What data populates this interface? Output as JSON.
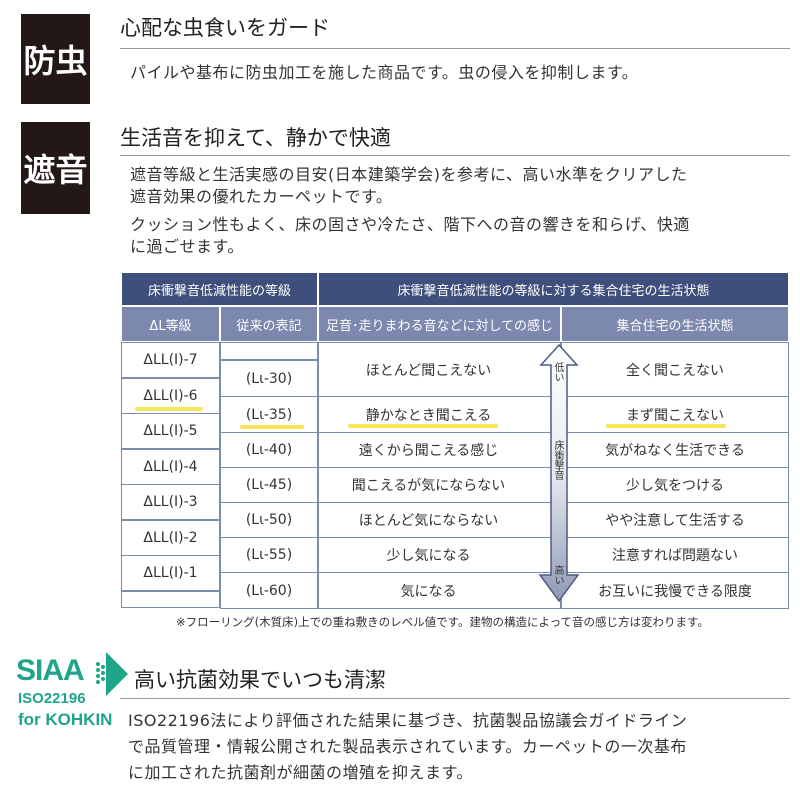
{
  "sections": [
    {
      "badge": "防虫",
      "title": "心配な虫食いをガード",
      "body": [
        "パイルや基布に防虫加工を施した商品です。虫の侵入を抑制します。"
      ]
    },
    {
      "badge": "遮音",
      "title": "生活音を抑えて、静かで快適",
      "body": [
        "遮音等級と生活実感の目安(日本建築学会)を参考に、高い水準をクリアした",
        "遮音効果の優れたカーペットです。",
        "クッション性もよく、床の固さや冷たさ、階下への音の響きを和らげ、快適",
        "に過ごせます。"
      ]
    },
    {
      "title": "高い抗菌効果でいつも清潔",
      "body": [
        "ISO22196法により評価された結果に基づき、抗菌製品協議会ガイドライン",
        "で品質管理・情報公開された製品表示されています。カーペットの一次基布",
        "に加工された抗菌剤が細菌の増殖を抑えます。"
      ]
    }
  ],
  "logo": {
    "name": "SIAA",
    "line2": "ISO22196",
    "line3": "for KOHKIN",
    "color": "#1fa58a"
  },
  "table": {
    "header1": [
      "床衝撃音低減性能の等級",
      "床衝撃音低減性能の等級に対する集合住宅の生活状態"
    ],
    "header2": [
      "ΔL等級",
      "従来の表記",
      "足音･走りまわる音などに対しての感じ",
      "集合住宅の生活状態"
    ],
    "grades": [
      "ΔLL(I)-7",
      "ΔLL(I)-6",
      "ΔLL(I)-5",
      "ΔLL(I)-4",
      "ΔLL(I)-3",
      "ΔLL(I)-2",
      "ΔLL(I)-1"
    ],
    "legacy": [
      "(Lι-30)",
      "(Lι-35)",
      "(Lι-40)",
      "(Lι-45)",
      "(Lι-50)",
      "(Lι-55)",
      "(Lι-60)"
    ],
    "feeling": [
      "ほとんど聞こえない",
      "静かなとき聞こえる",
      "遠くから聞こえる感じ",
      "聞こえるが気にならない",
      "ほとんど気にならない",
      "少し気になる",
      "気になる"
    ],
    "living": [
      "全く聞こえない",
      "まず聞こえない",
      "気がねなく生活できる",
      "少し気をつける",
      "やや注意して生活する",
      "注意すれば問題ない",
      "お互いに我慢できる限度"
    ],
    "arrow": {
      "top": "低い",
      "middle": "床衝撃音",
      "bottom": "高い"
    },
    "highlight_color": "#f6e65a",
    "note": "※フローリング(木質床)上での重ね敷きのレベル値です。建物の構造によって音の感じ方は変わります。"
  }
}
